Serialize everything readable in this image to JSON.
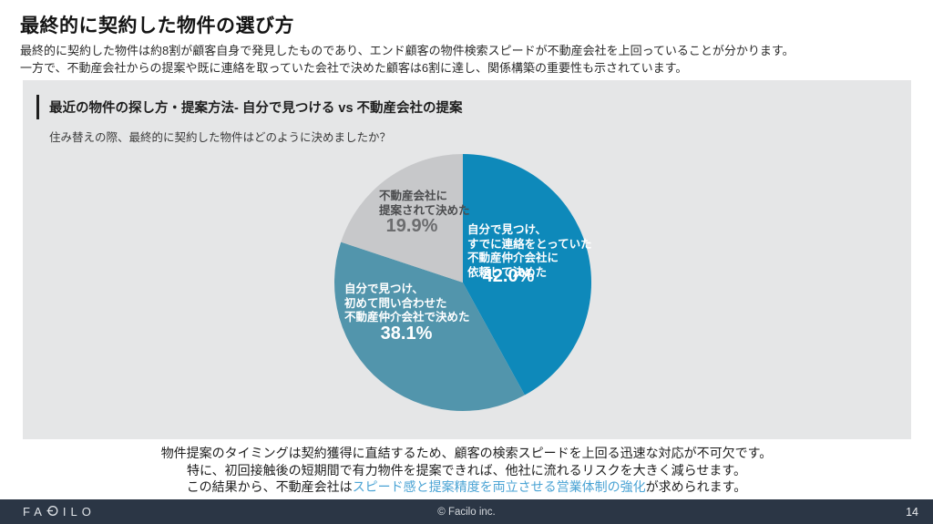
{
  "slide": {
    "title": "最終的に契約した物件の選び方",
    "intro_line1": "最終的に契約した物件は約8割が顧客自身で発見したものであり、エンド顧客の物件検索スピードが不動産会社を上回っていることが分かります。",
    "intro_line2": "一方で、不動産会社からの提案や既に連絡を取っていた会社で決めた顧客は6割に達し、関係構築の重要性も示されています。"
  },
  "panel": {
    "header": "最近の物件の探し方・提案方法- 自分で見つける vs 不動産会社の提案",
    "question": "住み替えの際、最終的に契約した物件はどのように決めましたか？",
    "background_color": "#e5e6e7"
  },
  "chart_data": {
    "type": "pie",
    "title": "最近の物件の探し方・提案方法- 自分で見つける vs 不動産会社の提案",
    "subtitle": "住み替えの際、最終的に契約した物件はどのように決めましたか？",
    "start_angle_deg": 0,
    "direction": "clockwise",
    "legend_position": "inside",
    "slices": [
      {
        "label": "自分で見つけ、\nすでに連絡をとっていた\n不動産仲介会社に\n依頼して決めた",
        "pct_label": "42.0%",
        "value": 42.0,
        "color": "#0e89ba"
      },
      {
        "label": "自分で見つけ、\n初めて問い合わせた\n不動産仲介会社で決めた",
        "pct_label": "38.1%",
        "value": 38.1,
        "color": "#5295ac"
      },
      {
        "label": "不動産会社に\n提案されて決めた",
        "pct_label": "19.9%",
        "value": 19.9,
        "color": "#c7c8ca"
      }
    ]
  },
  "conclusion": {
    "line1": "物件提案のタイミングは契約獲得に直結するため、顧客の検索スピードを上回る迅速な対応が不可欠です。",
    "line2": "特に、初回接触後の短期間で有力物件を提案できれば、他社に流れるリスクを大きく減らせます。",
    "line3_prefix": "この結果から、不動産会社は",
    "line3_highlight": "スピード感と提案精度を両立させる営業体制の強化",
    "line3_suffix": "が求められます。",
    "highlight_color": "#4aa3d4"
  },
  "footer": {
    "logo_left": "FA",
    "logo_right": "ILO",
    "logo_name": "FACILO",
    "copyright": "© Facilo inc.",
    "page_number": "14",
    "bar_color": "#2b3645"
  }
}
